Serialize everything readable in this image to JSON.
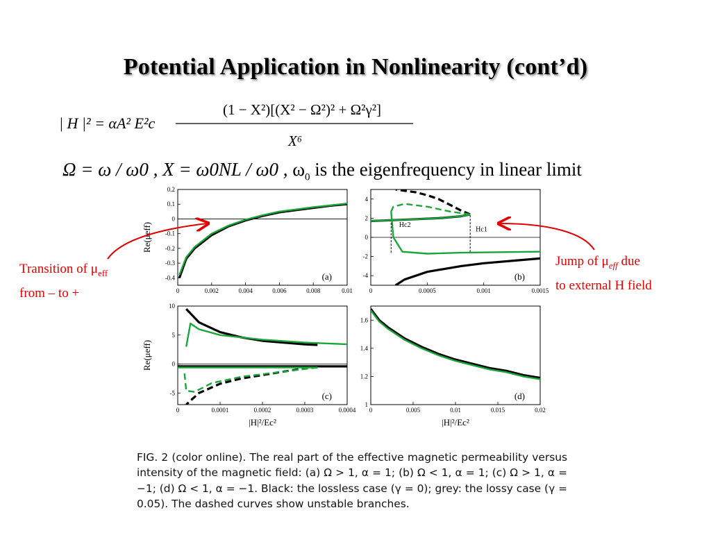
{
  "slide": {
    "title": "Potential Application in Nonlinearity (cont’d)",
    "equation1": {
      "lhs": "| H |² = αA² E²c",
      "numerator": "(1 − X²)[(X² − Ω²)² + Ω²γ²]",
      "denominator": "X⁶"
    },
    "equation2": {
      "definitions": "Ω = ω / ω0 , X = ω0NL / ω0 ,",
      "omega_symbol": "ω",
      "omega_sub": "0",
      "description": "is the eigenfrequency in linear limit"
    },
    "annotation_left": {
      "line1_prefix": "Transition of ",
      "symbol": "μ",
      "subscript": "eff",
      "line2": "from – to +"
    },
    "annotation_right": {
      "line1_prefix": "Jump of ",
      "symbol": "μ",
      "subscript": "eff",
      "line1_suffix": " due",
      "line2": "to external H field"
    },
    "caption": "FIG. 2 (color online). The real part of the effective magnetic permeability versus intensity of the magnetic field: (a) Ω > 1, α = 1; (b) Ω < 1, α = 1; (c) Ω > 1, α = −1; (d) Ω < 1, α = −1. Black: the lossless case (γ = 0); grey: the lossy case (γ = 0.05). The dashed curves show unstable branches.",
    "colors": {
      "lossless": "#000000",
      "lossy": "#1aa53a",
      "annotation": "#e00000",
      "title_shadow": "#9a9a9a"
    }
  },
  "chart_data": [
    {
      "type": "line",
      "panel_label": "(a)",
      "xlim": [
        0,
        0.01
      ],
      "ylim": [
        -0.45,
        0.2
      ],
      "xticks": [
        "0",
        "0.002",
        "0.004",
        "0.006",
        "0.008",
        "0.01"
      ],
      "yticks": [
        "0.2",
        "0.1",
        "0",
        "-0.1",
        "-0.2",
        "-0.3",
        "-0.4"
      ],
      "ylabel": "Re(μeff)",
      "xlabel": "",
      "series": [
        {
          "color": "black",
          "x": [
            0.0001,
            0.0005,
            0.001,
            0.002,
            0.003,
            0.004,
            0.005,
            0.006,
            0.007,
            0.008,
            0.009,
            0.01
          ],
          "y": [
            -0.4,
            -0.27,
            -0.2,
            -0.11,
            -0.05,
            -0.01,
            0.02,
            0.045,
            0.06,
            0.075,
            0.09,
            0.1
          ]
        },
        {
          "color": "green",
          "x": [
            0.0001,
            0.0005,
            0.001,
            0.002,
            0.003,
            0.004,
            0.005,
            0.006,
            0.007,
            0.008,
            0.009,
            0.01
          ],
          "y": [
            -0.38,
            -0.26,
            -0.19,
            -0.1,
            -0.045,
            -0.005,
            0.025,
            0.05,
            0.065,
            0.08,
            0.092,
            0.105
          ]
        }
      ]
    },
    {
      "type": "line",
      "panel_label": "(b)",
      "xlim": [
        0,
        0.0015
      ],
      "ylim": [
        -5,
        5
      ],
      "xticks": [
        "0",
        "0.0005",
        "0.001",
        "0.0015"
      ],
      "yticks": [
        "4",
        "2",
        "0",
        "-2",
        "-4"
      ],
      "annotations": [
        "Hc2",
        "Hc1"
      ],
      "series": [
        {
          "color": "black",
          "dash": false,
          "x": [
            0,
            0.0002,
            0.0004,
            0.0006,
            0.0008,
            0.00088
          ],
          "y": [
            1.7,
            1.8,
            1.9,
            2.0,
            2.2,
            2.4
          ]
        },
        {
          "color": "black",
          "dash": true,
          "x": [
            0.00088,
            0.0008,
            0.0007,
            0.0006,
            0.0005,
            0.0004,
            0.00022
          ],
          "y": [
            2.4,
            2.8,
            3.4,
            4.0,
            4.4,
            4.7,
            5.0
          ]
        },
        {
          "color": "black",
          "dash": false,
          "x": [
            0.00022,
            0.0003,
            0.0005,
            0.0008,
            0.001,
            0.0013,
            0.0015
          ],
          "y": [
            -5.0,
            -4.4,
            -3.6,
            -3.0,
            -2.7,
            -2.4,
            -2.2
          ]
        },
        {
          "color": "green",
          "dash": false,
          "x": [
            0,
            0.0002,
            0.0004,
            0.0006,
            0.0008,
            0.00088
          ],
          "y": [
            1.7,
            1.8,
            1.9,
            2.0,
            2.2,
            2.4
          ]
        },
        {
          "color": "green",
          "dash": true,
          "x": [
            0.00088,
            0.0007,
            0.0005,
            0.0003,
            0.0002,
            0.00018
          ],
          "y": [
            2.4,
            2.7,
            3.2,
            3.5,
            3.2,
            2.7
          ]
        },
        {
          "color": "green",
          "dash": false,
          "x": [
            0.00018,
            0.0002,
            0.00028,
            0.0005,
            0.0008,
            0.0011,
            0.0015
          ],
          "y": [
            2.7,
            0,
            -1.5,
            -1.7,
            -1.6,
            -1.55,
            -1.5
          ]
        }
      ]
    },
    {
      "type": "line",
      "panel_label": "(c)",
      "xlim": [
        0,
        0.0004
      ],
      "ylim": [
        -7,
        10
      ],
      "xticks": [
        "0",
        "0.0001",
        "0.0002",
        "0.0003",
        "0.0004"
      ],
      "yticks": [
        "10",
        "5",
        "0",
        "-5"
      ],
      "ylabel": "Re(μeff)",
      "xlabel": "|H|²/Ec²",
      "series": [
        {
          "color": "black",
          "dash": false,
          "x": [
            2e-05,
            5e-05,
            0.0001,
            0.00015,
            0.0002,
            0.00025,
            0.0003,
            0.00033
          ],
          "y": [
            9.5,
            7.2,
            5.5,
            4.6,
            4.0,
            3.7,
            3.4,
            3.3
          ]
        },
        {
          "color": "black",
          "dash": false,
          "x": [
            0,
            0.0001,
            0.0002,
            0.0003,
            0.0004
          ],
          "y": [
            -0.4,
            -0.4,
            -0.4,
            -0.4,
            -0.4
          ]
        },
        {
          "color": "black",
          "dash": true,
          "x": [
            0.00033,
            0.00025,
            0.00015,
            0.0001,
            5e-05,
            2e-05
          ],
          "y": [
            -0.4,
            -1.3,
            -2.5,
            -3.4,
            -5.0,
            -7.0
          ]
        },
        {
          "color": "green",
          "dash": false,
          "x": [
            2e-05,
            3e-05,
            5e-05,
            0.0001,
            0.0002,
            0.0003,
            0.0004
          ],
          "y": [
            3.0,
            7.0,
            6.0,
            5.0,
            4.2,
            3.7,
            3.4
          ]
        },
        {
          "color": "green",
          "dash": false,
          "x": [
            0,
            0.0001,
            0.0002,
            0.0003,
            0.00033
          ],
          "y": [
            -0.6,
            -0.6,
            -0.6,
            -0.6,
            -0.6
          ]
        },
        {
          "color": "green",
          "dash": true,
          "x": [
            0.00033,
            0.00025,
            0.00015,
            8e-05,
            4e-05,
            2e-05,
            1.5e-05
          ],
          "y": [
            -0.6,
            -1.3,
            -2.2,
            -3.3,
            -4.8,
            -4.6,
            -1.0
          ]
        }
      ]
    },
    {
      "type": "line",
      "panel_label": "(d)",
      "xlim": [
        0,
        0.02
      ],
      "ylim": [
        1,
        1.7
      ],
      "xticks": [
        "0",
        "0.005",
        "0.01",
        "0.015",
        "0.02"
      ],
      "yticks": [
        "1.6",
        "1.4",
        "1.2",
        "1"
      ],
      "xlabel": "|H|²/Ec²",
      "series": [
        {
          "color": "black",
          "x": [
            0,
            0.001,
            0.002,
            0.004,
            0.006,
            0.008,
            0.01,
            0.012,
            0.014,
            0.016,
            0.018,
            0.02
          ],
          "y": [
            1.68,
            1.6,
            1.55,
            1.47,
            1.41,
            1.36,
            1.32,
            1.29,
            1.26,
            1.24,
            1.21,
            1.19
          ]
        },
        {
          "color": "green",
          "x": [
            0,
            0.001,
            0.002,
            0.004,
            0.006,
            0.008,
            0.01,
            0.012,
            0.014,
            0.016,
            0.018,
            0.02
          ],
          "y": [
            1.67,
            1.59,
            1.54,
            1.46,
            1.4,
            1.35,
            1.31,
            1.28,
            1.25,
            1.23,
            1.2,
            1.18
          ]
        }
      ]
    }
  ]
}
